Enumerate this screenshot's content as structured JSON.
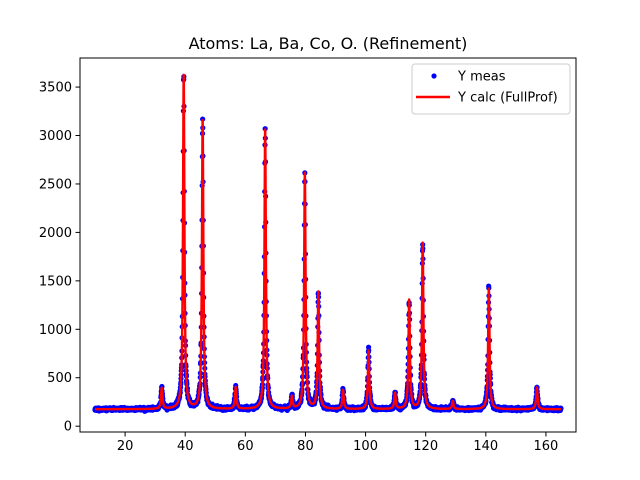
{
  "chart_data": {
    "type": "line",
    "title": "Atoms: La, Ba, Co, O. (Refinement)",
    "xlabel": "",
    "ylabel": "",
    "xlim": [
      5,
      170
    ],
    "ylim": [
      -60,
      3800
    ],
    "x_ticks": [
      20,
      40,
      60,
      80,
      100,
      120,
      140,
      160
    ],
    "y_ticks": [
      0,
      500,
      1000,
      1500,
      2000,
      2500,
      3000,
      3500
    ],
    "grid": false,
    "legend_position": "top-right",
    "x_range": [
      10,
      165
    ],
    "background_level": 175,
    "peak_width": 0.28,
    "peaks": [
      {
        "x": 32.2,
        "height": 390
      },
      {
        "x": 39.5,
        "height": 3620
      },
      {
        "x": 45.8,
        "height": 3150
      },
      {
        "x": 56.8,
        "height": 400
      },
      {
        "x": 66.6,
        "height": 3060
      },
      {
        "x": 75.5,
        "height": 300
      },
      {
        "x": 79.8,
        "height": 2610
      },
      {
        "x": 84.3,
        "height": 1380
      },
      {
        "x": 92.5,
        "height": 370
      },
      {
        "x": 101.0,
        "height": 780
      },
      {
        "x": 109.8,
        "height": 340
      },
      {
        "x": 114.5,
        "height": 1300
      },
      {
        "x": 119.0,
        "height": 1890
      },
      {
        "x": 129.0,
        "height": 260
      },
      {
        "x": 141.0,
        "height": 1420
      },
      {
        "x": 157.0,
        "height": 400
      }
    ],
    "series": [
      {
        "name": "Y meas",
        "style": "markers",
        "color": "#0000ff"
      },
      {
        "name": "Y calc (FullProf)",
        "style": "line",
        "color": "#ff0000"
      }
    ]
  }
}
